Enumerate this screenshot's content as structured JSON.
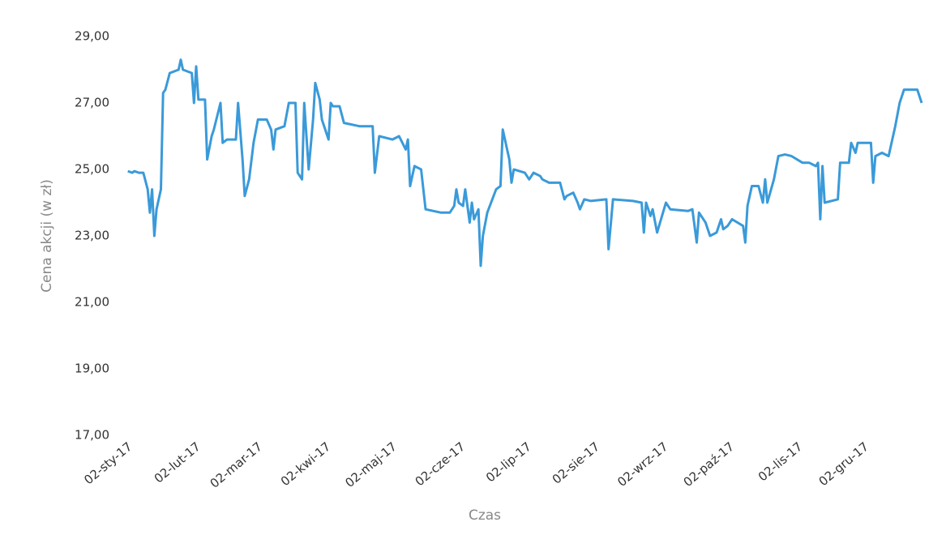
{
  "chart_data": {
    "type": "line",
    "y_label": "Cena akcji (w zł)",
    "x_label": "Czas",
    "color": "#3a9ad9",
    "grid": false,
    "x": [
      "2017-01-03",
      "2017-01-05",
      "2017-01-06",
      "2017-01-08",
      "2017-01-10",
      "2017-01-12",
      "2017-01-13",
      "2017-01-14",
      "2017-01-15",
      "2017-01-16",
      "2017-01-18",
      "2017-01-19",
      "2017-01-20",
      "2017-01-22",
      "2017-01-26",
      "2017-01-27",
      "2017-01-28",
      "2017-02-01",
      "2017-02-02",
      "2017-02-03",
      "2017-02-04",
      "2017-02-07",
      "2017-02-08",
      "2017-02-10",
      "2017-02-11",
      "2017-02-14",
      "2017-02-15",
      "2017-02-17",
      "2017-02-21",
      "2017-02-22",
      "2017-02-24",
      "2017-02-25",
      "2017-02-27",
      "2017-03-01",
      "2017-03-03",
      "2017-03-07",
      "2017-03-09",
      "2017-03-10",
      "2017-03-11",
      "2017-03-15",
      "2017-03-17",
      "2017-03-20",
      "2017-03-21",
      "2017-03-23",
      "2017-03-24",
      "2017-03-26",
      "2017-03-28",
      "2017-03-29",
      "2017-03-31",
      "2017-04-01",
      "2017-04-04",
      "2017-04-05",
      "2017-04-06",
      "2017-04-09",
      "2017-04-11",
      "2017-04-18",
      "2017-04-24",
      "2017-04-25",
      "2017-04-27",
      "2017-05-03",
      "2017-05-06",
      "2017-05-09",
      "2017-05-10",
      "2017-05-11",
      "2017-05-13",
      "2017-05-16",
      "2017-05-18",
      "2017-05-25",
      "2017-05-29",
      "2017-05-31",
      "2017-06-01",
      "2017-06-02",
      "2017-06-04",
      "2017-06-05",
      "2017-06-07",
      "2017-06-08",
      "2017-06-09",
      "2017-06-11",
      "2017-06-12",
      "2017-06-13",
      "2017-06-15",
      "2017-06-19",
      "2017-06-21",
      "2017-06-22",
      "2017-06-25",
      "2017-06-26",
      "2017-06-27",
      "2017-07-02",
      "2017-07-04",
      "2017-07-06",
      "2017-07-09",
      "2017-07-10",
      "2017-07-13",
      "2017-07-18",
      "2017-07-20",
      "2017-07-21",
      "2017-07-24",
      "2017-07-26",
      "2017-07-27",
      "2017-07-29",
      "2017-08-01",
      "2017-08-08",
      "2017-08-09",
      "2017-08-11",
      "2017-08-20",
      "2017-08-24",
      "2017-08-25",
      "2017-08-26",
      "2017-08-28",
      "2017-08-29",
      "2017-08-31",
      "2017-09-04",
      "2017-09-06",
      "2017-09-14",
      "2017-09-16",
      "2017-09-18",
      "2017-09-19",
      "2017-09-22",
      "2017-09-24",
      "2017-09-27",
      "2017-09-29",
      "2017-09-30",
      "2017-10-02",
      "2017-10-04",
      "2017-10-09",
      "2017-10-10",
      "2017-10-11",
      "2017-10-13",
      "2017-10-16",
      "2017-10-18",
      "2017-10-19",
      "2017-10-20",
      "2017-10-23",
      "2017-10-25",
      "2017-10-28",
      "2017-10-31",
      "2017-11-05",
      "2017-11-08",
      "2017-11-11",
      "2017-11-12",
      "2017-11-13",
      "2017-11-14",
      "2017-11-15",
      "2017-11-21",
      "2017-11-22",
      "2017-11-26",
      "2017-11-27",
      "2017-11-29",
      "2017-11-30",
      "2017-12-02",
      "2017-12-06",
      "2017-12-07",
      "2017-12-08",
      "2017-12-11",
      "2017-12-14",
      "2017-12-17",
      "2017-12-19",
      "2017-12-21",
      "2017-12-27",
      "2017-12-29"
    ],
    "values": [
      24.95,
      24.9,
      24.95,
      24.9,
      24.9,
      24.4,
      23.7,
      24.4,
      23.0,
      23.8,
      24.4,
      27.3,
      27.4,
      27.9,
      28.0,
      28.3,
      28.0,
      27.9,
      27.0,
      28.1,
      27.1,
      27.1,
      25.3,
      26.0,
      26.2,
      27.0,
      25.8,
      25.9,
      25.9,
      27.0,
      25.3,
      24.2,
      24.7,
      25.8,
      26.5,
      26.5,
      26.2,
      25.6,
      26.2,
      26.3,
      27.0,
      27.0,
      24.9,
      24.7,
      27.0,
      25.0,
      26.5,
      27.6,
      27.1,
      26.5,
      25.9,
      27.0,
      26.9,
      26.9,
      26.4,
      26.3,
      26.3,
      24.9,
      26.0,
      25.9,
      26.0,
      25.6,
      25.9,
      24.5,
      25.1,
      25.0,
      23.8,
      23.7,
      23.7,
      23.9,
      24.4,
      24.0,
      23.9,
      24.4,
      23.4,
      24.0,
      23.5,
      23.8,
      22.1,
      23.0,
      23.7,
      24.4,
      24.5,
      26.2,
      25.3,
      24.6,
      25.0,
      24.9,
      24.7,
      24.9,
      24.8,
      24.7,
      24.6,
      24.6,
      24.1,
      24.2,
      24.3,
      24.0,
      23.8,
      24.1,
      24.05,
      24.1,
      22.6,
      24.1,
      24.05,
      24.0,
      23.1,
      24.0,
      23.6,
      23.8,
      23.1,
      24.0,
      23.8,
      23.75,
      23.8,
      22.8,
      23.7,
      23.4,
      23.0,
      23.1,
      23.5,
      23.2,
      23.3,
      23.5,
      23.3,
      22.8,
      23.9,
      24.5,
      24.5,
      24.0,
      24.7,
      24.0,
      24.7,
      25.4,
      25.45,
      25.4,
      25.2,
      25.2,
      25.1,
      25.2,
      23.5,
      25.1,
      24.0,
      24.1,
      25.2,
      25.2,
      25.8,
      25.5,
      25.8,
      25.8,
      25.8,
      24.6,
      25.4,
      25.5,
      25.4,
      26.3,
      27.0,
      27.4,
      27.4,
      27.0
    ],
    "xlim": [
      "2017-01-02",
      "2017-12-29"
    ],
    "xticks": [
      {
        "value": "2017-01-02",
        "label": "02-sty-17"
      },
      {
        "value": "2017-02-02",
        "label": "02-lut-17"
      },
      {
        "value": "2017-03-02",
        "label": "02-mar-17"
      },
      {
        "value": "2017-04-02",
        "label": "02-kwi-17"
      },
      {
        "value": "2017-05-02",
        "label": "02-maj-17"
      },
      {
        "value": "2017-06-02",
        "label": "02-cze-17"
      },
      {
        "value": "2017-07-02",
        "label": "02-lip-17"
      },
      {
        "value": "2017-08-02",
        "label": "02-sie-17"
      },
      {
        "value": "2017-09-02",
        "label": "02-wrz-17"
      },
      {
        "value": "2017-10-02",
        "label": "02-paź-17"
      },
      {
        "value": "2017-11-02",
        "label": "02-lis-17"
      },
      {
        "value": "2017-12-02",
        "label": "02-gru-17"
      }
    ],
    "ylim": [
      17,
      29
    ],
    "yticks": [
      {
        "value": 17,
        "label": "17,00"
      },
      {
        "value": 19,
        "label": "19,00"
      },
      {
        "value": 21,
        "label": "21,00"
      },
      {
        "value": 23,
        "label": "23,00"
      },
      {
        "value": 25,
        "label": "25,00"
      },
      {
        "value": 27,
        "label": "27,00"
      },
      {
        "value": 29,
        "label": "29,00"
      }
    ]
  }
}
